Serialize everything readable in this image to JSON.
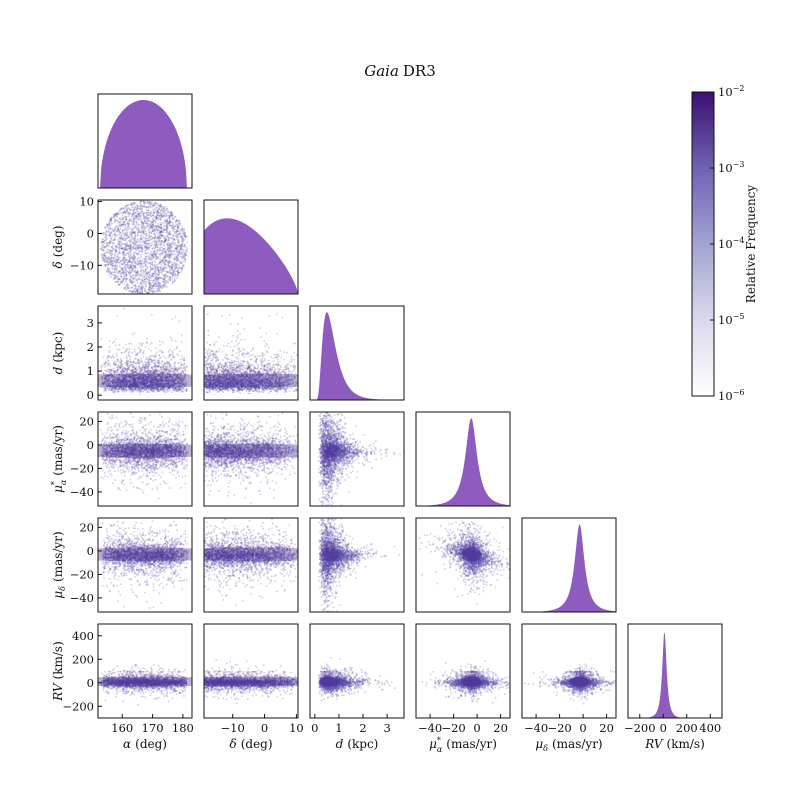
{
  "chart_data": {
    "type": "corner",
    "title": {
      "italic": "Gaia",
      "rest": "DR3"
    },
    "variables": [
      {
        "key": "ra",
        "sym": "α",
        "sub": "",
        "sup": "",
        "unit": "(deg)",
        "label": "α (deg)",
        "range": [
          152,
          183
        ],
        "ticks": [
          160,
          170,
          180
        ]
      },
      {
        "key": "dec",
        "sym": "δ",
        "sub": "",
        "sup": "",
        "unit": "(deg)",
        "label": "δ (deg)",
        "range": [
          -19,
          10.5
        ],
        "ticks": [
          -10,
          0,
          10
        ]
      },
      {
        "key": "dist",
        "sym": "d",
        "sub": "",
        "sup": "",
        "unit": "(kpc)",
        "label": "d (kpc)",
        "range": [
          -0.2,
          3.7
        ],
        "ticks": [
          0,
          1,
          2,
          3
        ]
      },
      {
        "key": "pmra",
        "sym": "μ",
        "sub": "α",
        "sup": "*",
        "unit": "(mas/yr)",
        "label": "μα* (mas/yr)",
        "range": [
          -52,
          28
        ],
        "ticks": [
          -40,
          -20,
          0,
          20
        ]
      },
      {
        "key": "pmdec",
        "sym": "μ",
        "sub": "δ",
        "sup": "",
        "unit": "(mas/yr)",
        "label": "μδ (mas/yr)",
        "range": [
          -52,
          28
        ],
        "ticks": [
          -40,
          -20,
          0,
          20
        ]
      },
      {
        "key": "rv",
        "sym": "RV",
        "sub": "",
        "sup": "",
        "unit": "(km/s)",
        "label": "RV (km/s)",
        "range": [
          -300,
          500
        ],
        "ticks": [
          -200,
          0,
          200,
          400
        ]
      }
    ],
    "tick_labels": {
      "ra": [
        "160",
        "170",
        "180"
      ],
      "dec": [
        "−10",
        "0",
        "10"
      ],
      "dist": [
        "0",
        "1",
        "2",
        "3"
      ],
      "pmra": [
        "−40",
        "−20",
        "0",
        "20"
      ],
      "pmdec": [
        "−40",
        "−20",
        "0",
        "20"
      ],
      "rv": [
        "−200",
        "0",
        "200",
        "400"
      ]
    },
    "colorbar": {
      "label": "Relative Frequency",
      "scale": "log",
      "range": [
        1e-06,
        0.01
      ],
      "ticks": [
        {
          "value": 0.01,
          "base": "10",
          "exp": "−2"
        },
        {
          "value": 0.001,
          "base": "10",
          "exp": "−3"
        },
        {
          "value": 0.0001,
          "base": "10",
          "exp": "−4"
        },
        {
          "value": 1e-05,
          "base": "10",
          "exp": "−5"
        },
        {
          "value": 1e-06,
          "base": "10",
          "exp": "−6"
        }
      ],
      "colors": [
        "#ffffff",
        "#d4d4ea",
        "#9a9acc",
        "#6a5bb0",
        "#3b0f70"
      ]
    },
    "hist_color": "#8e5bbf",
    "marginals": {
      "ra": {
        "shape": "semicircle",
        "center": 167,
        "half_width": 14
      },
      "dec": {
        "shape": "skewed-dome",
        "peak": -7.5,
        "low": -19,
        "high": 10.5
      },
      "dist": {
        "shape": "skewed",
        "peak": 0.5
      },
      "pmra": {
        "shape": "peaked",
        "peak": -5
      },
      "pmdec": {
        "shape": "peaked",
        "peak": -3
      },
      "rv": {
        "shape": "peaked",
        "peak": 10
      }
    }
  }
}
